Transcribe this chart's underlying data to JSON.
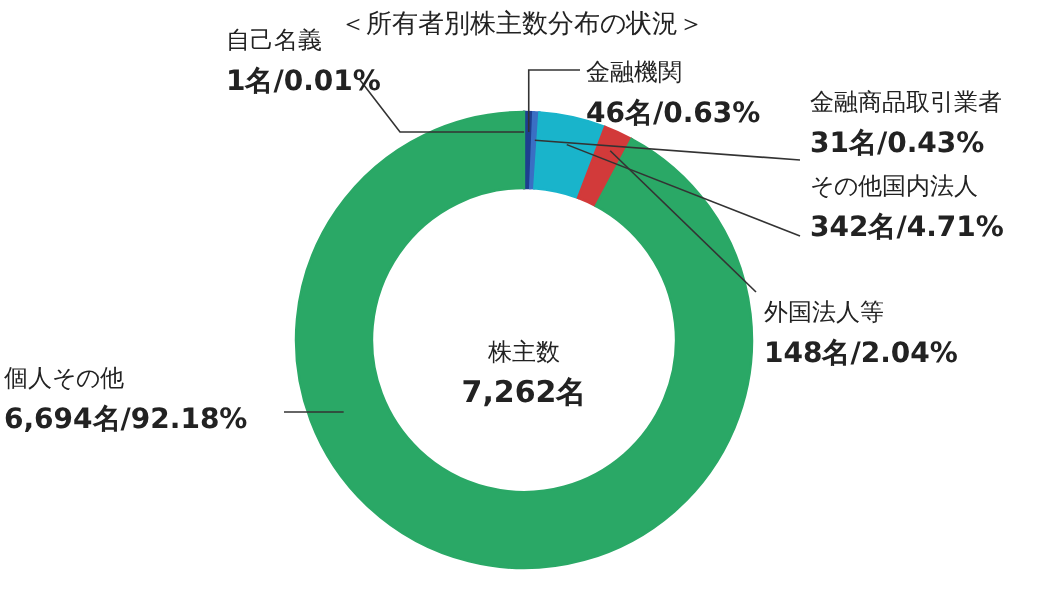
{
  "chart_data": {
    "type": "donut",
    "title": "＜所有者別株主数分布の状況＞",
    "categories": [
      "自己名義",
      "金融機関",
      "金融商品取引業者",
      "その他国内法人",
      "外国法人等",
      "個人その他"
    ],
    "values": [
      1,
      46,
      31,
      342,
      148,
      6694
    ],
    "value_labels": [
      "1名/0.01%",
      "46名/0.63%",
      "31名/0.43%",
      "342名/4.71%",
      "148名/2.04%",
      "6,694名/92.18%"
    ],
    "colors": [
      "#555555",
      "#1d3f8f",
      "#3a6fc4",
      "#19b4cb",
      "#d23a3a",
      "#2aa866"
    ],
    "annotations": [
      "株主数",
      "7,262名"
    ]
  }
}
